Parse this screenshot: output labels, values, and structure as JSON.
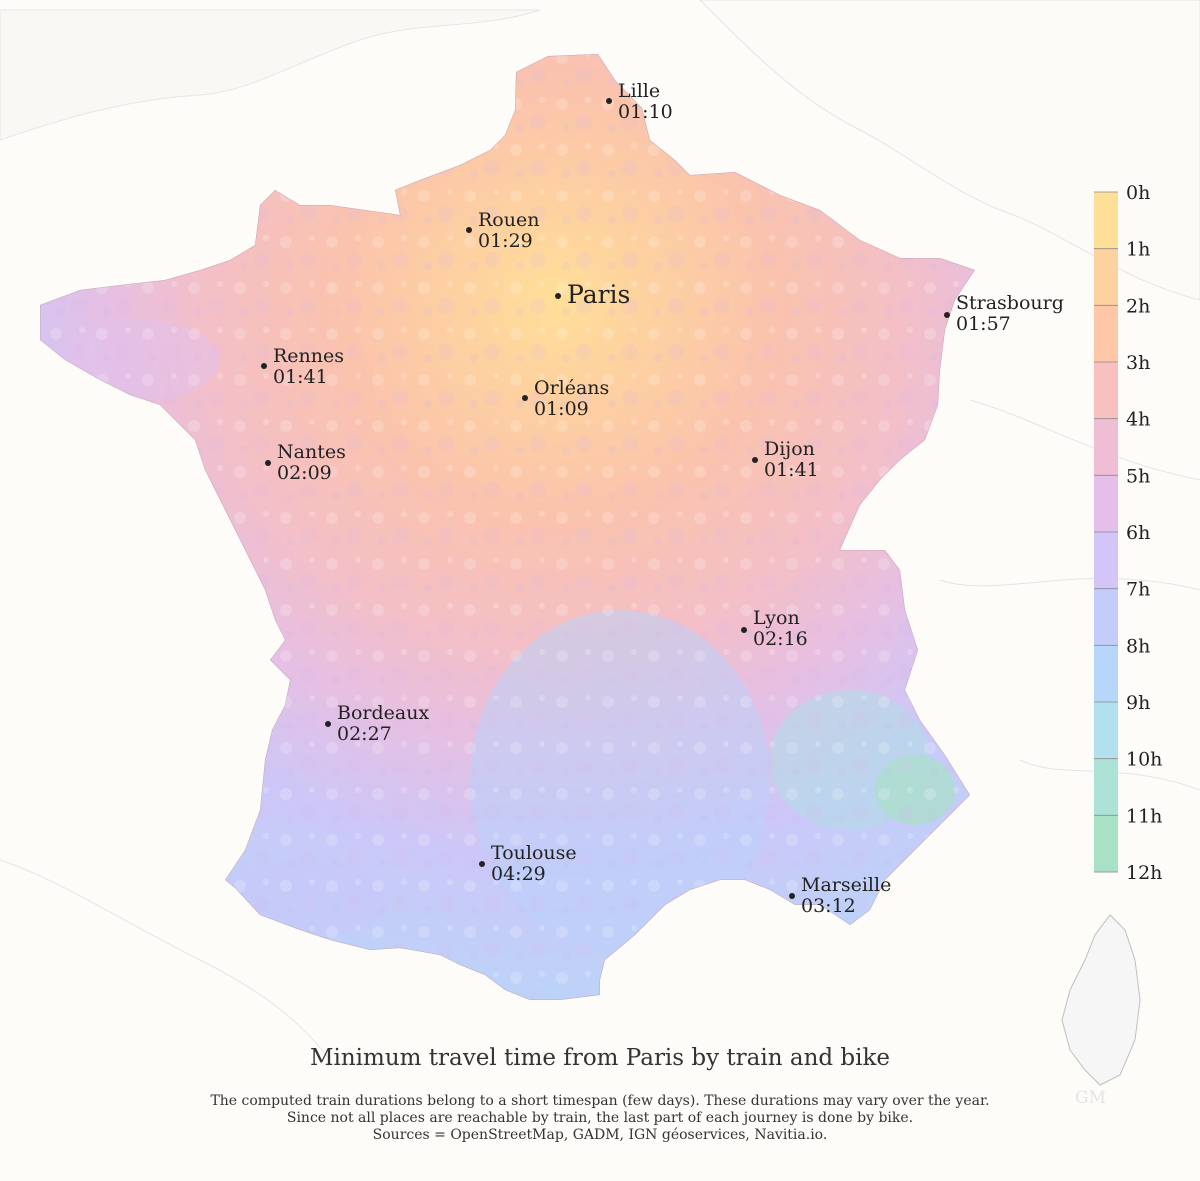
{
  "title": "Minimum travel time from Paris by train and bike",
  "subtitle_lines": [
    "The computed train durations belong to a short timespan (few days). These durations may vary over the year.",
    "Since not all places are reachable by train, the last part of each journey is done by bike.",
    "Sources = OpenStreetMap, GADM, IGN géoservices, Navitia.io."
  ],
  "watermark": "GM",
  "origin": {
    "name": "Paris"
  },
  "cities": [
    {
      "name": "Lille",
      "time": "01:10"
    },
    {
      "name": "Rouen",
      "time": "01:29"
    },
    {
      "name": "Strasbourg",
      "time": "01:57"
    },
    {
      "name": "Rennes",
      "time": "01:41"
    },
    {
      "name": "Orléans",
      "time": "01:09"
    },
    {
      "name": "Nantes",
      "time": "02:09"
    },
    {
      "name": "Dijon",
      "time": "01:41"
    },
    {
      "name": "Lyon",
      "time": "02:16"
    },
    {
      "name": "Bordeaux",
      "time": "02:27"
    },
    {
      "name": "Toulouse",
      "time": "04:29"
    },
    {
      "name": "Marseille",
      "time": "03:12"
    }
  ],
  "colorbar": {
    "labels": [
      "0h",
      "1h",
      "2h",
      "3h",
      "4h",
      "5h",
      "6h",
      "7h",
      "8h",
      "9h",
      "10h",
      "11h",
      "12h"
    ],
    "colors": [
      "#fedf98",
      "#fed29f",
      "#fdc7a8",
      "#f8c0bf",
      "#efbdd4",
      "#e3bfea",
      "#d3c5f7",
      "#c2cdfb",
      "#b6d6fa",
      "#b1e1ee",
      "#ade3d7",
      "#a9e1c6"
    ]
  },
  "colors": {
    "background": "#fdfcf9",
    "france_base": "#f6c1c4",
    "land_neighbor": "#fcfbf8",
    "border_line": "#e3e3e3",
    "city_dot": "#222222",
    "text": "#222222"
  }
}
